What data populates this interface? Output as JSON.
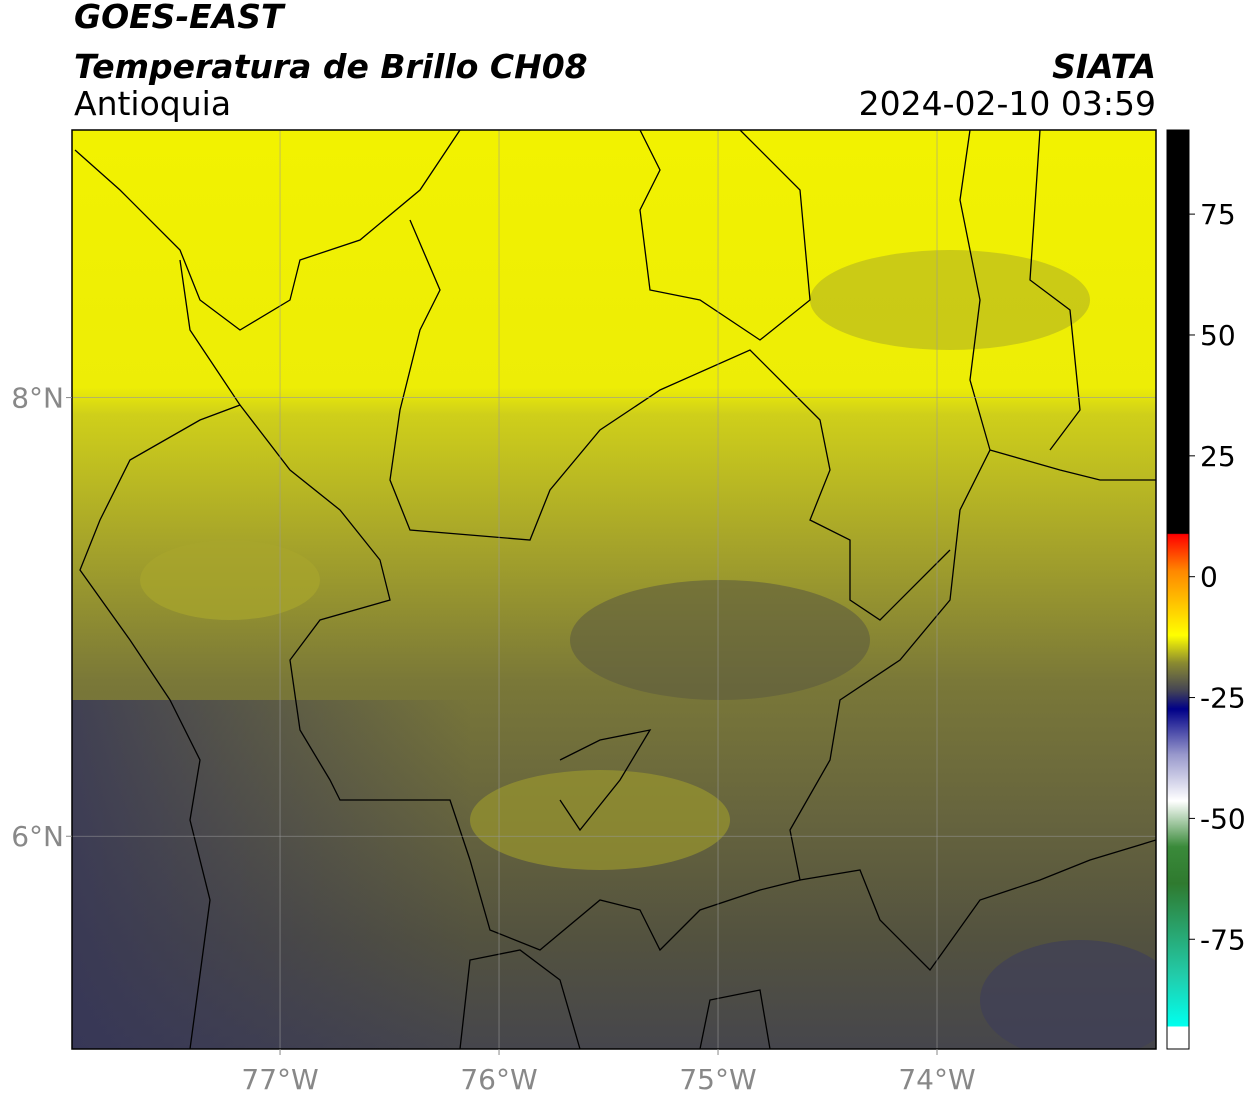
{
  "map": {
    "title": "GOES-EAST",
    "subtitle": "Temperatura de Brillo CH08",
    "region": "Antioquia",
    "source": "SIATA",
    "datetime": "2024-02-10 03:59",
    "xlim": [
      -77.95,
      -73
    ],
    "ylim": [
      5.03,
      9.22
    ],
    "xticks": [
      {
        "value": -77,
        "label": "77°W"
      },
      {
        "value": -76,
        "label": "76°W"
      },
      {
        "value": -75,
        "label": "75°W"
      },
      {
        "value": -74,
        "label": "74°W"
      }
    ],
    "yticks": [
      {
        "value": 6,
        "label": "6°N"
      },
      {
        "value": 8,
        "label": "8°N"
      }
    ],
    "grid": true,
    "colorbar": {
      "lim": [
        -97.7,
        92.4
      ],
      "ticks": [
        -75,
        -50,
        -25,
        0,
        25,
        50,
        75
      ]
    }
  }
}
